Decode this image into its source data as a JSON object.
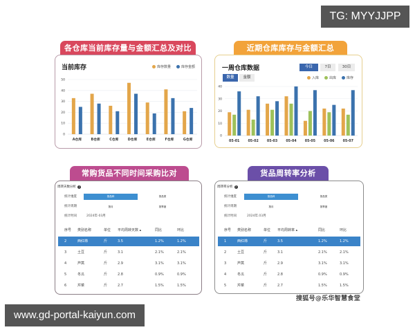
{
  "watermarks": {
    "top": "TG: MYYJJPP",
    "bottom": "www.gd-portal-kaiyun.com",
    "source": "搜狐号@乐华智慧食堂"
  },
  "colors": {
    "orange": "#e3a64a",
    "blue": "#3b72ad",
    "green": "#9ec15a",
    "tab_red": "#d9485d",
    "tab_orange": "#f2a33a",
    "tab_magenta": "#bd4c8f",
    "tab_purple": "#6b4fa8",
    "highlight_row": "#3a83c8",
    "filter_bar": "#3d8fd1"
  },
  "sections": {
    "s1": {
      "banner": "各仓库当前库存量与金额汇总及对比",
      "title": "当前库存"
    },
    "s2": {
      "banner": "近期仓库库存与金额汇总",
      "title": "一周仓库数据",
      "range_buttons": [
        "今日",
        "7日",
        "30日"
      ],
      "range_active": "今日",
      "metric_buttons": [
        "数量",
        "金额"
      ],
      "metric_active": "数量"
    },
    "s3": {
      "banner": "常购货品不同时间采购比对",
      "panel_title": "周转天数分析",
      "filters": {
        "dimension_label": "统计维度",
        "dimension_selected": "按品种",
        "dimension_other": "按品类",
        "period_label": "统计周期",
        "period_opt1": "按月",
        "period_opt2": "按季度",
        "time_label": "统计时间",
        "time_value": "2024年-03月"
      },
      "table": {
        "headers": [
          "序号",
          "类别名称",
          "单位",
          "平均周转天数 ▴",
          "同比",
          "环比"
        ],
        "rows": [
          [
            "2",
            "西红柿",
            "斤",
            "3.5",
            "1.2%",
            "1.2%"
          ],
          [
            "3",
            "土豆",
            "斤",
            "3.1",
            "2.1%",
            "2.1%"
          ],
          [
            "4",
            "芦蒿",
            "斤",
            "2.9",
            "3.1%",
            "3.1%"
          ],
          [
            "5",
            "冬瓜",
            "斤",
            "2.8",
            "0.9%",
            "0.9%"
          ],
          [
            "6",
            "芹菜",
            "斤",
            "2.7",
            "1.5%",
            "1.5%"
          ]
        ],
        "highlighted_row": 0
      }
    },
    "s4": {
      "banner": "货品周转率分析",
      "panel_title": "周转率分析",
      "filters": {
        "dimension_label": "统计维度",
        "dimension_selected": "按品种",
        "dimension_other": "按品类",
        "period_label": "统计周期",
        "period_opt1": "按月",
        "period_opt2": "按季度",
        "time_label": "统计时间",
        "time_value": "2024年.03月"
      },
      "table": {
        "headers": [
          "序号",
          "类别名称",
          "单位",
          "平均周转率 ▴",
          "同比",
          "环比"
        ],
        "rows": [
          [
            "1",
            "西红柿",
            "斤",
            "3.5",
            "1.2%",
            "1.2%"
          ],
          [
            "2",
            "土豆",
            "斤",
            "3.1",
            "2.1%",
            "2.1%"
          ],
          [
            "3",
            "芦蒿",
            "斤",
            "2.9",
            "3.1%",
            "3.1%"
          ],
          [
            "4",
            "冬瓜",
            "斤",
            "2.8",
            "0.9%",
            "0.9%"
          ],
          [
            "5",
            "芹菜",
            "斤",
            "2.7",
            "1.5%",
            "1.5%"
          ]
        ],
        "highlighted_row": 0
      }
    }
  },
  "chart_data": [
    {
      "type": "bar",
      "title": "当前库存",
      "categories": [
        "A仓库",
        "B仓库",
        "C仓库",
        "D仓库",
        "E仓库",
        "F仓库",
        "G仓库"
      ],
      "series": [
        {
          "name": "库存数量",
          "color": "#e3a64a",
          "values": [
            33,
            37,
            26,
            47,
            29,
            41,
            21
          ]
        },
        {
          "name": "库存金额",
          "color": "#3b72ad",
          "values": [
            25,
            28,
            21,
            37,
            19,
            33,
            24
          ]
        }
      ],
      "yticks": [
        0,
        10,
        20,
        30,
        40,
        50
      ],
      "ylim": [
        0,
        50
      ],
      "grid": true,
      "legend_position": "top-right"
    },
    {
      "type": "bar",
      "title": "一周仓库数据",
      "categories": [
        "05-01",
        "05-02",
        "05-03",
        "05-04",
        "05-05",
        "05-06",
        "05-07"
      ],
      "series": [
        {
          "name": "入库",
          "color": "#e3a64a",
          "values": [
            19,
            21,
            26,
            32,
            12,
            22,
            22
          ]
        },
        {
          "name": "出库",
          "color": "#9ec15a",
          "values": [
            17,
            13,
            21,
            26,
            20,
            19,
            17
          ]
        },
        {
          "name": "库存",
          "color": "#3b72ad",
          "values": [
            36,
            32,
            28,
            40,
            37,
            25,
            37
          ]
        }
      ],
      "yticks": [
        0,
        10,
        20,
        30,
        40
      ],
      "ylim": [
        0,
        40
      ],
      "grid": true,
      "legend_position": "top-right"
    }
  ]
}
